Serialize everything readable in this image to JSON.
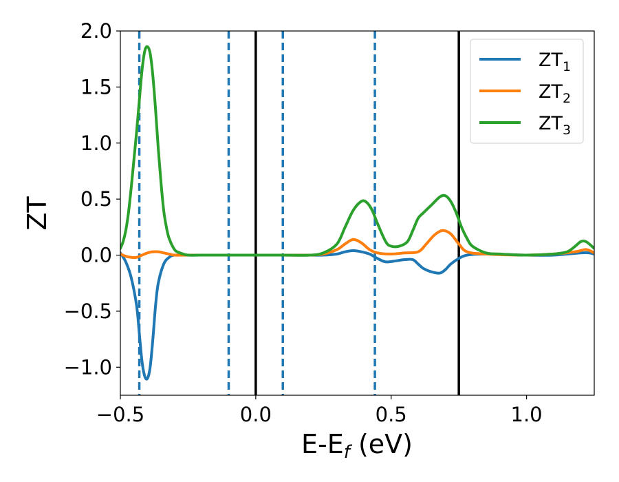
{
  "chart_data": {
    "type": "line",
    "xlabel": {
      "main": "E-E",
      "sub": "f",
      "unit": " (eV)"
    },
    "ylabel": "ZT",
    "xlim": [
      -0.5,
      1.25
    ],
    "ylim": [
      -1.25,
      2.0
    ],
    "xticks": [
      {
        "value": -0.5,
        "label": "−0.5"
      },
      {
        "value": 0.0,
        "label": "0.0"
      },
      {
        "value": 0.5,
        "label": "0.5"
      },
      {
        "value": 1.0,
        "label": "1.0"
      }
    ],
    "yticks": [
      {
        "value": -1.0,
        "label": "−1.0"
      },
      {
        "value": -0.5,
        "label": "−0.5"
      },
      {
        "value": 0.0,
        "label": "0.0"
      },
      {
        "value": 0.5,
        "label": "0.5"
      },
      {
        "value": 1.0,
        "label": "1.0"
      },
      {
        "value": 1.5,
        "label": "1.5"
      },
      {
        "value": 2.0,
        "label": "2.0"
      }
    ],
    "grid": false,
    "legend_position": "top-right",
    "vertical_lines": [
      {
        "x": -0.43,
        "style": "dashed",
        "color": "#1f77b4"
      },
      {
        "x": -0.1,
        "style": "dashed",
        "color": "#1f77b4"
      },
      {
        "x": 0.0,
        "style": "solid",
        "color": "#000000"
      },
      {
        "x": 0.1,
        "style": "dashed",
        "color": "#1f77b4"
      },
      {
        "x": 0.44,
        "style": "dashed",
        "color": "#1f77b4"
      },
      {
        "x": 0.75,
        "style": "solid",
        "color": "#000000"
      }
    ],
    "series": [
      {
        "name": "ZT",
        "sub": "1",
        "color": "#1f77b4",
        "x": [
          -0.5,
          -0.48,
          -0.46,
          -0.44,
          -0.43,
          -0.42,
          -0.41,
          -0.4,
          -0.39,
          -0.38,
          -0.37,
          -0.36,
          -0.34,
          -0.32,
          -0.3,
          -0.25,
          -0.2,
          -0.1,
          0.0,
          0.1,
          0.2,
          0.25,
          0.3,
          0.33,
          0.36,
          0.39,
          0.42,
          0.45,
          0.48,
          0.52,
          0.55,
          0.58,
          0.6,
          0.62,
          0.65,
          0.68,
          0.7,
          0.72,
          0.75,
          0.78,
          0.85,
          1.0,
          1.1,
          1.2,
          1.23,
          1.25
        ],
        "y": [
          0.02,
          -0.06,
          -0.2,
          -0.45,
          -0.7,
          -0.95,
          -1.08,
          -1.1,
          -1.0,
          -0.75,
          -0.45,
          -0.25,
          -0.08,
          -0.02,
          0.0,
          0.0,
          0.0,
          0.0,
          0.0,
          0.0,
          0.0,
          0.0,
          0.01,
          0.03,
          0.04,
          0.03,
          0.01,
          -0.03,
          -0.06,
          -0.05,
          -0.04,
          -0.04,
          -0.08,
          -0.12,
          -0.15,
          -0.16,
          -0.13,
          -0.08,
          -0.03,
          0.0,
          0.01,
          0.0,
          0.0,
          0.02,
          0.02,
          0.01
        ]
      },
      {
        "name": "ZT",
        "sub": "2",
        "color": "#ff7f0e",
        "x": [
          -0.5,
          -0.48,
          -0.46,
          -0.44,
          -0.42,
          -0.4,
          -0.38,
          -0.36,
          -0.34,
          -0.32,
          -0.3,
          -0.25,
          -0.2,
          -0.1,
          0.0,
          0.1,
          0.2,
          0.25,
          0.3,
          0.33,
          0.36,
          0.39,
          0.42,
          0.45,
          0.5,
          0.55,
          0.6,
          0.63,
          0.66,
          0.69,
          0.72,
          0.75,
          0.78,
          0.85,
          1.0,
          1.1,
          1.18,
          1.22,
          1.25
        ],
        "y": [
          0.01,
          -0.01,
          -0.02,
          -0.02,
          0.0,
          0.02,
          0.03,
          0.03,
          0.02,
          0.01,
          0.0,
          0.0,
          0.0,
          0.0,
          0.0,
          0.0,
          0.0,
          0.01,
          0.05,
          0.1,
          0.14,
          0.11,
          0.05,
          0.02,
          0.01,
          0.02,
          0.03,
          0.1,
          0.18,
          0.22,
          0.19,
          0.1,
          0.03,
          0.01,
          0.0,
          0.01,
          0.03,
          0.05,
          0.02
        ]
      },
      {
        "name": "ZT",
        "sub": "3",
        "color": "#2ca02c",
        "x": [
          -0.5,
          -0.49,
          -0.48,
          -0.47,
          -0.46,
          -0.45,
          -0.44,
          -0.43,
          -0.42,
          -0.41,
          -0.4,
          -0.39,
          -0.38,
          -0.37,
          -0.36,
          -0.35,
          -0.34,
          -0.33,
          -0.32,
          -0.3,
          -0.28,
          -0.25,
          -0.2,
          -0.1,
          0.0,
          0.1,
          0.2,
          0.25,
          0.3,
          0.33,
          0.36,
          0.39,
          0.41,
          0.43,
          0.45,
          0.48,
          0.5,
          0.53,
          0.56,
          0.58,
          0.6,
          0.62,
          0.65,
          0.68,
          0.7,
          0.72,
          0.74,
          0.76,
          0.78,
          0.8,
          0.85,
          0.9,
          1.0,
          1.1,
          1.15,
          1.18,
          1.2,
          1.22,
          1.25
        ],
        "y": [
          0.06,
          0.12,
          0.22,
          0.38,
          0.6,
          0.85,
          1.1,
          1.38,
          1.65,
          1.82,
          1.86,
          1.8,
          1.6,
          1.3,
          0.95,
          0.65,
          0.4,
          0.25,
          0.15,
          0.05,
          0.02,
          0.0,
          0.0,
          0.0,
          0.0,
          0.0,
          0.0,
          0.02,
          0.1,
          0.25,
          0.4,
          0.48,
          0.47,
          0.4,
          0.28,
          0.12,
          0.08,
          0.08,
          0.12,
          0.22,
          0.33,
          0.38,
          0.45,
          0.52,
          0.53,
          0.48,
          0.38,
          0.25,
          0.15,
          0.08,
          0.02,
          0.01,
          0.0,
          0.01,
          0.03,
          0.08,
          0.12,
          0.12,
          0.06
        ]
      }
    ]
  }
}
